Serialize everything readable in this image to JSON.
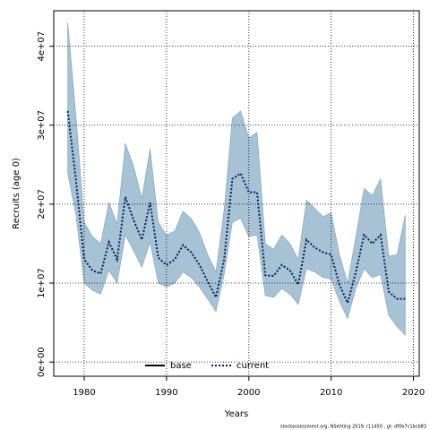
{
  "chart_data": {
    "type": "line_band",
    "x_label": "Years",
    "y_label": "Recruits (age 0)",
    "footer": "stockassessment.org, NSehting 2019, r11450 , gt: df0b7c1bcb83",
    "x": [
      1978,
      1979,
      1980,
      1981,
      1982,
      1983,
      1984,
      1985,
      1986,
      1987,
      1988,
      1989,
      1990,
      1991,
      1992,
      1993,
      1994,
      1995,
      1996,
      1997,
      1998,
      1999,
      2000,
      2001,
      2002,
      2003,
      2004,
      2005,
      2006,
      2007,
      2008,
      2009,
      2010,
      2011,
      2012,
      2013,
      2014,
      2015,
      2016,
      2017,
      2018,
      2019
    ],
    "series": [
      {
        "name": "current",
        "color": "#00205b",
        "dash": "dotted",
        "values": [
          31800000,
          23000000,
          13000000,
          11600000,
          11200000,
          15200000,
          13000000,
          20900000,
          18000000,
          15500000,
          20200000,
          13200000,
          12300000,
          13000000,
          14800000,
          13900000,
          12300000,
          10200000,
          8200000,
          13000000,
          23200000,
          23900000,
          21500000,
          21500000,
          11000000,
          10900000,
          12300000,
          11600000,
          9800000,
          15500000,
          14500000,
          13900000,
          13600000,
          9800000,
          7500000,
          11400000,
          16100000,
          15000000,
          16100000,
          8900000,
          8000000,
          8000000
        ],
        "upper": [
          43000000,
          31100000,
          17700000,
          15900000,
          15000000,
          20200000,
          17500000,
          27700000,
          24800000,
          20700000,
          27000000,
          17700000,
          16100000,
          16600000,
          19100000,
          18200000,
          16400000,
          13600000,
          11400000,
          19300000,
          30900000,
          31800000,
          28400000,
          29100000,
          15000000,
          14300000,
          16100000,
          15000000,
          13000000,
          20500000,
          19500000,
          18400000,
          18900000,
          13600000,
          10000000,
          15900000,
          22000000,
          21100000,
          23200000,
          13400000,
          13600000,
          18600000
        ],
        "lower": [
          23900000,
          18600000,
          10000000,
          9100000,
          8600000,
          11600000,
          10000000,
          16100000,
          14100000,
          12000000,
          15200000,
          10000000,
          9500000,
          10000000,
          11400000,
          10700000,
          9500000,
          8000000,
          6400000,
          11100000,
          17700000,
          18200000,
          15900000,
          16100000,
          8400000,
          8200000,
          9300000,
          8600000,
          7300000,
          11800000,
          11400000,
          10700000,
          10500000,
          7700000,
          5500000,
          9300000,
          11800000,
          10700000,
          11100000,
          5900000,
          4500000,
          3400000
        ],
        "band_color": "#a6c2d4",
        "band_edge": "#7f9fb2"
      }
    ],
    "legend": [
      {
        "name": "base",
        "color": "#000000",
        "dash": "solid"
      },
      {
        "name": "current",
        "color": "#00205b",
        "dash": "dotted"
      }
    ],
    "xlim": [
      1976.3,
      2020.7
    ],
    "xticks": [
      1980,
      1990,
      2000,
      2010,
      2020
    ],
    "ylim": [
      -1800000,
      44500000
    ],
    "yticks": [
      {
        "value": 0,
        "label": "0e+00"
      },
      {
        "value": 10000000,
        "label": "1e+07"
      },
      {
        "value": 20000000,
        "label": "2e+07"
      },
      {
        "value": 30000000,
        "label": "3e+07"
      },
      {
        "value": 40000000,
        "label": "4e+07"
      }
    ],
    "grid": true
  }
}
